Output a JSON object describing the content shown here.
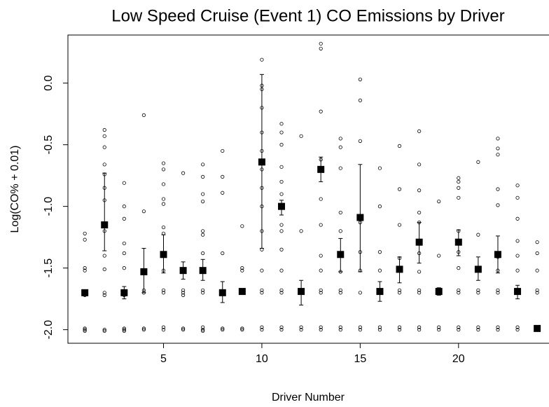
{
  "chart_data": {
    "type": "scatter",
    "title": "Low Speed Cruise (Event 1) CO Emissions by Driver",
    "xlabel": "Driver Number",
    "ylabel": "Log(CO% + 0.01)",
    "xlim": [
      0.14,
      24.6
    ],
    "ylim": [
      -2.11,
      0.39
    ],
    "xticks": [
      5,
      10,
      15,
      20
    ],
    "yticks": [
      {
        "value": -2,
        "label": "-2.0"
      },
      {
        "value": -1.5,
        "label": "-1.5"
      },
      {
        "value": -1,
        "label": "-1.0"
      },
      {
        "value": -0.5,
        "label": "-0.5"
      },
      {
        "value": 0,
        "label": "0.0"
      }
    ],
    "color": "#000000",
    "x": [
      1,
      2,
      3,
      4,
      5,
      6,
      7,
      8,
      9,
      10,
      11,
      12,
      13,
      14,
      15,
      16,
      17,
      18,
      19,
      20,
      21,
      22,
      23,
      24
    ],
    "values": [
      -1.7,
      -1.15,
      -1.7,
      -1.53,
      -1.39,
      -1.52,
      -1.52,
      -1.7,
      -1.69,
      -0.64,
      -1.0,
      -1.69,
      -0.7,
      -1.39,
      -1.09,
      -1.69,
      -1.51,
      -1.29,
      -1.69,
      -1.29,
      -1.51,
      -1.39,
      -1.69,
      -1.99
    ],
    "lower": [
      null,
      -1.36,
      -1.75,
      -1.7,
      -1.54,
      -1.59,
      -1.6,
      -1.78,
      null,
      -1.34,
      -1.07,
      -1.8,
      -0.8,
      -1.53,
      -1.53,
      -1.77,
      -1.62,
      -1.46,
      -1.72,
      -1.4,
      -1.6,
      -1.54,
      -1.75,
      null
    ],
    "upper": [
      null,
      -0.73,
      -1.65,
      -1.34,
      -1.23,
      -1.45,
      -1.43,
      -1.61,
      null,
      0.07,
      -0.95,
      -1.6,
      -0.6,
      -1.26,
      -0.66,
      -1.61,
      -1.41,
      -1.13,
      -1.66,
      -1.19,
      -1.41,
      -1.24,
      -1.64,
      null
    ],
    "observations": [
      [
        -2.0,
        -1.99,
        -2.01,
        -1.7,
        -1.72,
        -1.52,
        -1.5,
        -1.27,
        -1.22
      ],
      [
        -2.0,
        -2.01,
        -1.7,
        -1.72,
        -1.51,
        -1.4,
        -1.2,
        -0.95,
        -0.85,
        -0.74,
        -0.66,
        -0.52,
        -0.43,
        -0.38
      ],
      [
        -2.0,
        -1.99,
        -2.01,
        -1.7,
        -1.72,
        -1.5,
        -1.38,
        -1.3,
        -1.1,
        -1.0,
        -0.81
      ],
      [
        -2.0,
        -1.99,
        -1.7,
        -1.68,
        -1.53,
        -1.04,
        -0.26
      ],
      [
        -2.0,
        -1.98,
        -1.7,
        -1.68,
        -1.52,
        -1.39,
        -1.22,
        -1.17,
        -0.98,
        -0.94,
        -0.82,
        -0.7,
        -0.65
      ],
      [
        -2.0,
        -1.99,
        -1.7,
        -1.68,
        -1.72,
        -0.73
      ],
      [
        -2.0,
        -1.98,
        -2.01,
        -1.7,
        -1.68,
        -1.52,
        -1.38,
        -1.23,
        -1.2,
        -0.96,
        -0.9,
        -0.76,
        -0.66
      ],
      [
        -2.0,
        -1.99,
        -1.7,
        -1.38,
        -0.89,
        -0.76,
        -0.55
      ],
      [
        -2.0,
        -1.99,
        -1.7,
        -1.68,
        -1.52,
        -1.5,
        -1.16
      ],
      [
        -2.0,
        -1.98,
        -1.7,
        -1.68,
        -1.52,
        -1.35,
        -1.2,
        -1.0,
        -0.85,
        -0.7,
        -0.55,
        -0.4,
        -0.2,
        -0.05,
        -0.02,
        0.19
      ],
      [
        -2.0,
        -1.98,
        -1.7,
        -1.68,
        -1.52,
        -1.35,
        -1.2,
        -1.15,
        -0.9,
        -0.8,
        -0.68,
        -0.5,
        -0.4,
        -0.33
      ],
      [
        -2.0,
        -1.98,
        -1.7,
        -1.2,
        -0.43
      ],
      [
        -2.0,
        -1.98,
        -1.7,
        -1.68,
        -1.52,
        -1.4,
        -1.15,
        -0.94,
        -0.62,
        -0.23,
        0.28,
        0.32
      ],
      [
        -2.0,
        -1.98,
        -1.7,
        -1.68,
        -1.53,
        -1.39,
        -1.2,
        -1.05,
        -0.69,
        -0.52,
        -0.45
      ],
      [
        -2.0,
        -1.98,
        -1.7,
        -1.52,
        -1.37,
        -1.13,
        -0.47,
        -0.14,
        0.03
      ],
      [
        -2.0,
        -1.98,
        -1.7,
        -1.68,
        -1.52,
        -1.37,
        -1.0,
        -0.69
      ],
      [
        -2.0,
        -1.98,
        -1.7,
        -1.68,
        -1.52,
        -1.42,
        -1.15,
        -0.86,
        -0.51
      ],
      [
        -2.0,
        -1.98,
        -1.7,
        -1.68,
        -1.53,
        -1.38,
        -1.13,
        -1.05,
        -0.87,
        -0.66,
        -0.39
      ],
      [
        -2.0,
        -1.98,
        -1.7,
        -1.68,
        -1.4,
        -0.96
      ],
      [
        -2.0,
        -1.98,
        -1.7,
        -1.68,
        -1.5,
        -1.37,
        -1.2,
        -0.93,
        -0.85,
        -0.8,
        -0.77
      ],
      [
        -2.0,
        -1.98,
        -1.7,
        -1.68,
        -1.52,
        -1.23,
        -0.64
      ],
      [
        -2.0,
        -1.98,
        -1.7,
        -1.68,
        -1.52,
        -1.41,
        -0.99,
        -0.86,
        -0.58,
        -0.53,
        -0.45
      ],
      [
        -2.0,
        -1.98,
        -1.7,
        -1.68,
        -1.52,
        -1.4,
        -1.28,
        -1.1,
        -0.93,
        -0.83
      ],
      [
        -2.0,
        -1.98,
        -1.7,
        -1.68,
        -1.52,
        -1.38,
        -1.29
      ]
    ]
  }
}
